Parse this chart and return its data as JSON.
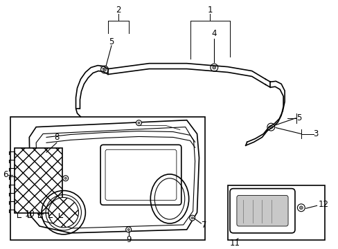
{
  "background_color": "#ffffff",
  "fig_width": 4.89,
  "fig_height": 3.6,
  "dpi": 100,
  "line_color": "#000000",
  "gray_color": "#888888",
  "light_gray": "#cccccc"
}
